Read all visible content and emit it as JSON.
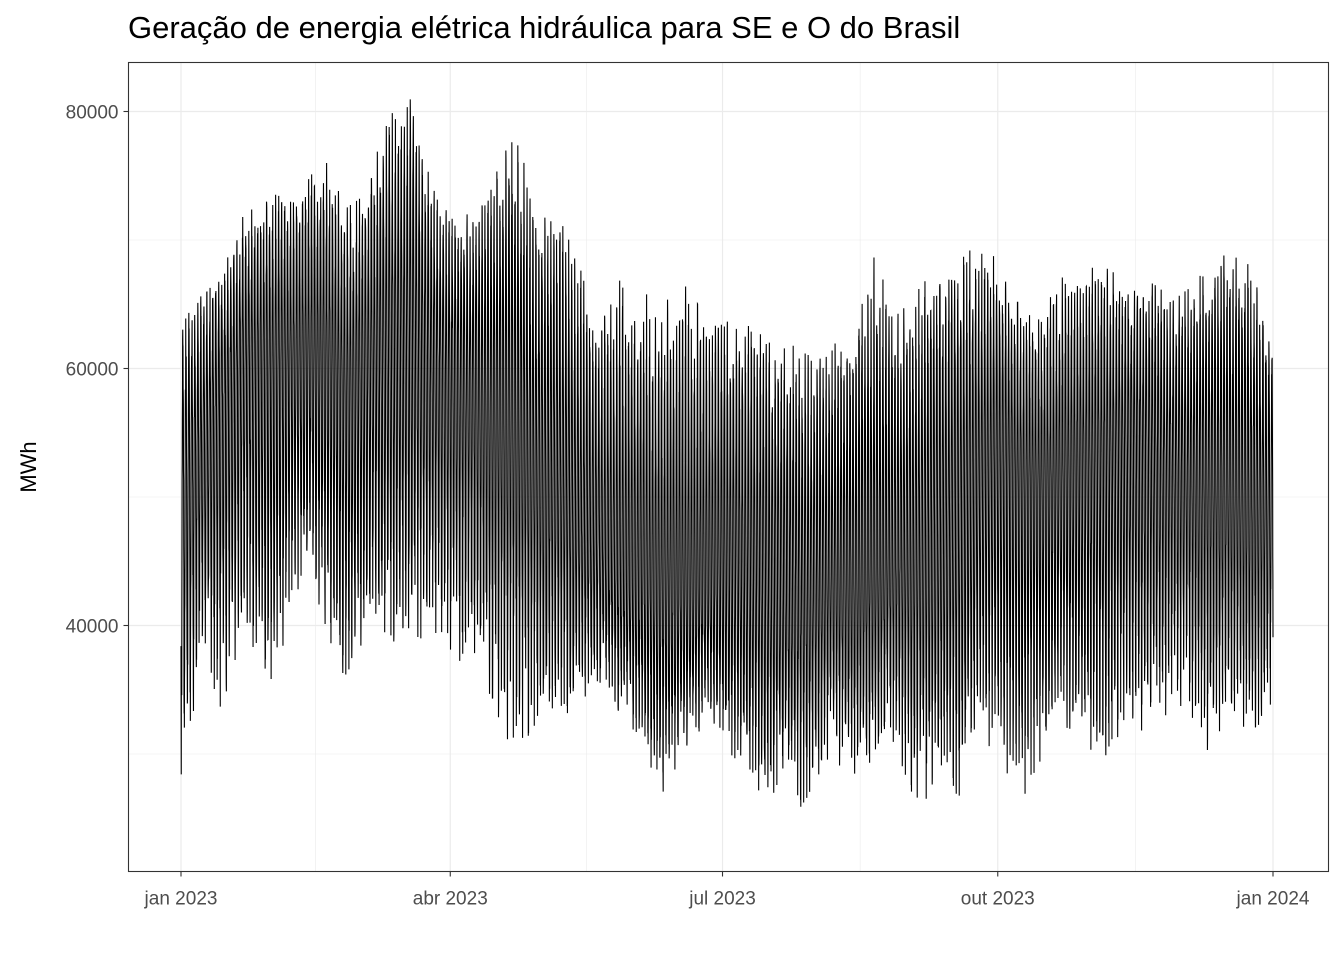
{
  "chart_data": {
    "type": "line",
    "title": "Geração de energia elétrica hidráulica para SE e O do Brasil",
    "xlabel": "",
    "ylabel": "MWh",
    "x_start": "2023-01-01",
    "x_end": "2024-01-01",
    "x_ticks": [
      {
        "date": "2023-01-01",
        "label": "jan 2023"
      },
      {
        "date": "2023-04-01",
        "label": "abr 2023"
      },
      {
        "date": "2023-07-01",
        "label": "jul 2023"
      },
      {
        "date": "2023-10-01",
        "label": "out 2023"
      },
      {
        "date": "2024-01-01",
        "label": "jan 2024"
      }
    ],
    "y_ticks": [
      40000,
      60000,
      80000
    ],
    "ylim": [
      24000,
      81500
    ],
    "grid": true,
    "series": [
      {
        "resolution": "weekly envelope of hourly data (min / mean / max MWh)",
        "color": "#000000",
        "x": [
          "2023-01-01",
          "2023-01-08",
          "2023-01-15",
          "2023-01-22",
          "2023-01-29",
          "2023-02-05",
          "2023-02-12",
          "2023-02-19",
          "2023-02-26",
          "2023-03-05",
          "2023-03-12",
          "2023-03-19",
          "2023-03-26",
          "2023-04-02",
          "2023-04-09",
          "2023-04-16",
          "2023-04-23",
          "2023-04-30",
          "2023-05-07",
          "2023-05-14",
          "2023-05-21",
          "2023-05-28",
          "2023-06-04",
          "2023-06-11",
          "2023-06-18",
          "2023-06-25",
          "2023-07-02",
          "2023-07-09",
          "2023-07-16",
          "2023-07-23",
          "2023-07-30",
          "2023-08-06",
          "2023-08-13",
          "2023-08-20",
          "2023-08-27",
          "2023-09-03",
          "2023-09-10",
          "2023-09-17",
          "2023-09-24",
          "2023-10-01",
          "2023-10-08",
          "2023-10-15",
          "2023-10-22",
          "2023-10-29",
          "2023-11-05",
          "2023-11-12",
          "2023-11-19",
          "2023-11-26",
          "2023-12-03",
          "2023-12-10",
          "2023-12-17",
          "2023-12-24",
          "2023-12-31"
        ],
        "min": [
          26500,
          38000,
          33000,
          40000,
          34000,
          39000,
          45000,
          38500,
          33000,
          40000,
          37000,
          37000,
          40000,
          36500,
          37000,
          33500,
          29500,
          32000,
          32500,
          34000,
          35500,
          33000,
          30500,
          27000,
          30000,
          32000,
          30500,
          28500,
          26000,
          27500,
          24800,
          30000,
          28000,
          29500,
          31000,
          26000,
          26500,
          25000,
          31000,
          30000,
          26000,
          29000,
          32500,
          31000,
          29500,
          32000,
          30000,
          33000,
          34000,
          30000,
          33000,
          30000,
          32500
        ],
        "mean": [
          50000,
          54000,
          57000,
          60000,
          59000,
          60000,
          60000,
          59500,
          57000,
          60000,
          61000,
          62000,
          60000,
          59000,
          58000,
          57000,
          56000,
          53000,
          52000,
          48000,
          46000,
          44000,
          43000,
          42000,
          42000,
          43000,
          44000,
          43500,
          43000,
          42500,
          43000,
          44000,
          44000,
          44500,
          45000,
          46000,
          47000,
          48000,
          50000,
          52000,
          51000,
          50000,
          50500,
          51000,
          52000,
          53000,
          53500,
          52500,
          52000,
          51500,
          51000,
          50500,
          50000
        ],
        "max": [
          64000,
          66000,
          68000,
          72000,
          73000,
          74000,
          75000,
          77000,
          72500,
          75000,
          80000,
          81000,
          74000,
          72000,
          73000,
          75000,
          79000,
          71000,
          73000,
          68000,
          64000,
          67000,
          66000,
          65000,
          67000,
          65000,
          64000,
          64000,
          63000,
          62000,
          61000,
          62000,
          63000,
          69000,
          65000,
          66000,
          68000,
          70000,
          69000,
          69000,
          65000,
          64000,
          67000,
          68000,
          68000,
          67000,
          67000,
          66000,
          66000,
          68000,
          70000,
          68000,
          63500
        ]
      }
    ]
  }
}
